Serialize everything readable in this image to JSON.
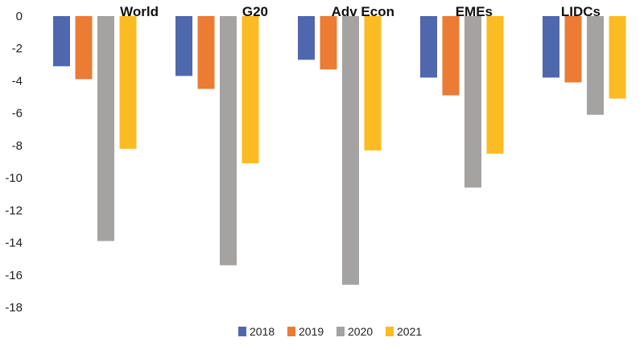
{
  "chart_data": {
    "type": "bar",
    "title": "",
    "xlabel": "",
    "ylabel": "",
    "categories": [
      "World",
      "G20",
      "Adv Econ",
      "EMEs",
      "LIDCs"
    ],
    "series": [
      {
        "name": "2018",
        "color": "#4f67ad",
        "values": [
          -3.1,
          -3.7,
          -2.7,
          -3.8,
          -3.8
        ]
      },
      {
        "name": "2019",
        "color": "#ec7b34",
        "values": [
          -3.9,
          -4.5,
          -3.3,
          -4.9,
          -4.1
        ]
      },
      {
        "name": "2020",
        "color": "#a5a2a2",
        "values": [
          -13.9,
          -15.4,
          -16.6,
          -10.6,
          -6.1
        ]
      },
      {
        "name": "2021",
        "color": "#fbbb22",
        "values": [
          -8.2,
          -9.1,
          -8.3,
          -8.5,
          -5.1
        ]
      }
    ],
    "ylim": [
      -18,
      0
    ],
    "yticks": [
      0,
      -2,
      -4,
      -6,
      -8,
      -10,
      -12,
      -14,
      -16,
      -18
    ],
    "grid": false,
    "legend_position": "bottom-center"
  }
}
